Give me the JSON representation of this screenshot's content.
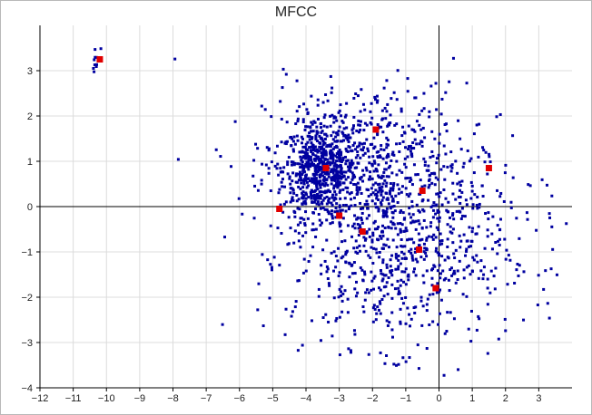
{
  "chart_data": {
    "type": "scatter",
    "title": "MFCC",
    "xlabel": "",
    "ylabel": "",
    "xlim": [
      -12,
      4
    ],
    "ylim": [
      -4,
      4
    ],
    "grid": true,
    "x_ticks": [
      -12,
      -11,
      -10,
      -9,
      -8,
      -7,
      -6,
      -5,
      -4,
      -3,
      -2,
      -1,
      0,
      1,
      2,
      3
    ],
    "y_ticks": [
      -4,
      -3,
      -2,
      -1,
      0,
      1,
      2,
      3
    ],
    "x_tick_labels": [
      "−12",
      "−11",
      "−10",
      "−9",
      "−8",
      "−7",
      "−6",
      "−5",
      "−4",
      "−3",
      "−2",
      "−1",
      "0",
      "1",
      "2",
      "3"
    ],
    "y_tick_labels": [
      "−4",
      "−3",
      "−2",
      "−1",
      "0",
      "1",
      "2",
      "3"
    ],
    "series": [
      {
        "color": "#0000a0",
        "marker": "square",
        "clusters": [
          {
            "cx": -3.6,
            "cy": 0.8,
            "sx": 0.55,
            "sy": 0.5,
            "n": 560
          },
          {
            "cx": -2.2,
            "cy": 0.9,
            "sx": 1.5,
            "sy": 0.9,
            "n": 520
          },
          {
            "cx": -1.2,
            "cy": -1.1,
            "sx": 1.6,
            "sy": 1.0,
            "n": 560
          },
          {
            "cx": -0.5,
            "cy": 0.1,
            "sx": 2.2,
            "sy": 1.5,
            "n": 240
          },
          {
            "cx": -10.3,
            "cy": 3.3,
            "sx": 0.12,
            "sy": 0.12,
            "n": 10
          }
        ]
      },
      {
        "color": "#e00000",
        "marker": "square",
        "x": [
          -10.2,
          -3.4,
          -1.9,
          1.5,
          -0.5,
          -4.8,
          -3.0,
          -2.3,
          -0.6,
          -0.1
        ],
        "y": [
          3.25,
          0.85,
          1.7,
          0.85,
          0.35,
          -0.05,
          -0.2,
          -0.55,
          -0.95,
          -1.8
        ]
      }
    ]
  }
}
